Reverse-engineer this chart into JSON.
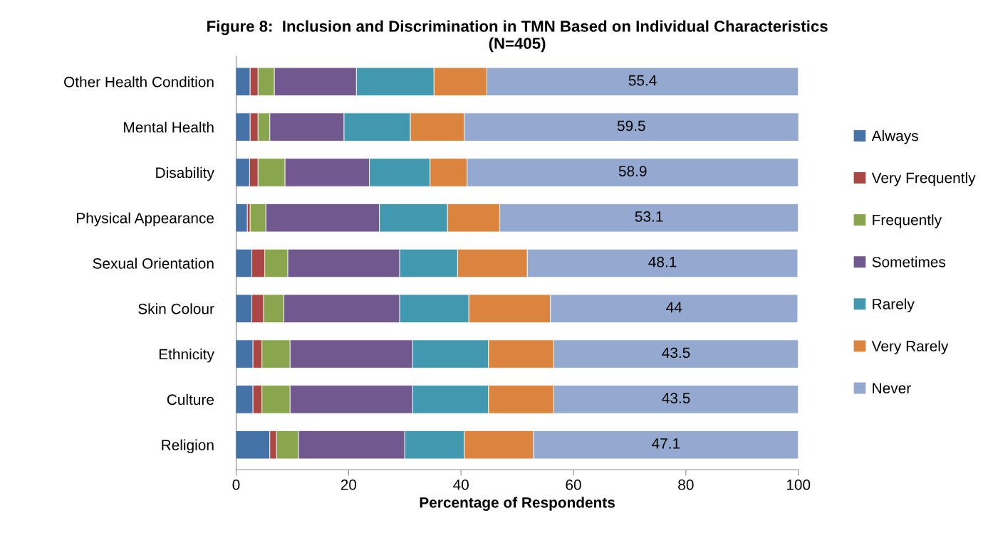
{
  "chart_data": {
    "type": "bar",
    "orientation": "horizontal",
    "stacked": true,
    "title": "Figure 8:  Inclusion and Discrimination in TMN Based on Individual Characteristics\n(N=405)",
    "xlabel": "Percentage of Respondents",
    "categories": [
      "Other Health Condition",
      "Mental Health",
      "Disability",
      "Physical Appearance",
      "Sexual Orientation",
      "Skin Colour",
      "Ethnicity",
      "Culture",
      "Religion"
    ],
    "xlim": [
      0,
      100
    ],
    "xticks": [
      0,
      20,
      40,
      60,
      80,
      100
    ],
    "grid": false,
    "legend": "right",
    "series": [
      {
        "name": "Always",
        "color": "#4572a7",
        "values": [
          2.5,
          2.5,
          2.4,
          2.0,
          2.8,
          2.8,
          3.0,
          3.0,
          6.0
        ]
      },
      {
        "name": "Very Frequently",
        "color": "#aa4643",
        "values": [
          1.4,
          1.4,
          1.5,
          0.5,
          2.3,
          2.1,
          1.6,
          1.6,
          1.2
        ]
      },
      {
        "name": "Frequently",
        "color": "#89a54e",
        "values": [
          2.9,
          2.1,
          4.8,
          2.8,
          4.1,
          3.6,
          5.0,
          5.0,
          3.9
        ]
      },
      {
        "name": "Sometimes",
        "color": "#71588f",
        "values": [
          14.6,
          13.2,
          15.0,
          20.2,
          19.9,
          20.6,
          21.8,
          21.8,
          18.9
        ]
      },
      {
        "name": "Rarely",
        "color": "#4198af",
        "values": [
          13.8,
          11.8,
          10.8,
          12.1,
          10.3,
          12.3,
          13.5,
          13.5,
          10.6
        ]
      },
      {
        "name": "Very Rarely",
        "color": "#db843d",
        "values": [
          9.4,
          9.6,
          6.6,
          9.3,
          12.4,
          14.5,
          11.6,
          11.6,
          12.3
        ]
      },
      {
        "name": "Never",
        "color": "#93a9cf",
        "values": [
          55.4,
          59.5,
          58.9,
          53.1,
          48.1,
          44,
          43.5,
          43.5,
          47.1
        ],
        "value_labels": [
          "55.4",
          "59.5",
          "58.9",
          "53.1",
          "48.1",
          "44",
          "43.5",
          "43.5",
          "47.1"
        ]
      }
    ]
  }
}
